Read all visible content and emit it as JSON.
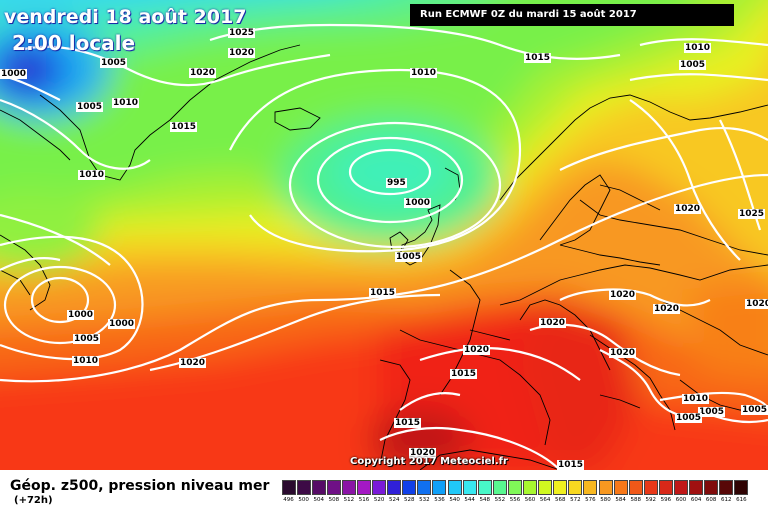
{
  "title": {
    "date": "vendredi 18 août 2017",
    "time": "2:00 locale"
  },
  "run_label": "Run ECMWF 0Z du mardi 15 août 2017",
  "copyright": "Copyright 2017 Meteociel.fr",
  "legend": {
    "title": "Géop. z500, pression niveau mer",
    "subtitle": "(+72h)",
    "scale": [
      {
        "v": "496",
        "c": "#2a0a2e"
      },
      {
        "v": "500",
        "c": "#3d0a46"
      },
      {
        "v": "504",
        "c": "#560c66"
      },
      {
        "v": "508",
        "c": "#6f1086"
      },
      {
        "v": "512",
        "c": "#8a14a6"
      },
      {
        "v": "516",
        "c": "#a418c4"
      },
      {
        "v": "520",
        "c": "#7a1ad8"
      },
      {
        "v": "524",
        "c": "#3020d8"
      },
      {
        "v": "528",
        "c": "#1040e8"
      },
      {
        "v": "532",
        "c": "#1070f0"
      },
      {
        "v": "536",
        "c": "#10a0f8"
      },
      {
        "v": "540",
        "c": "#20c8f8"
      },
      {
        "v": "544",
        "c": "#38e8f0"
      },
      {
        "v": "548",
        "c": "#48f8c8"
      },
      {
        "v": "552",
        "c": "#58f890"
      },
      {
        "v": "556",
        "c": "#80f858"
      },
      {
        "v": "560",
        "c": "#a8f830"
      },
      {
        "v": "564",
        "c": "#d0f820"
      },
      {
        "v": "568",
        "c": "#f0f020"
      },
      {
        "v": "572",
        "c": "#f8d820"
      },
      {
        "v": "576",
        "c": "#f8b820"
      },
      {
        "v": "580",
        "c": "#f89820"
      },
      {
        "v": "584",
        "c": "#f87818"
      },
      {
        "v": "588",
        "c": "#f05818"
      },
      {
        "v": "592",
        "c": "#e83818"
      },
      {
        "v": "596",
        "c": "#d82818"
      },
      {
        "v": "600",
        "c": "#c01818"
      },
      {
        "v": "604",
        "c": "#a01010"
      },
      {
        "v": "608",
        "c": "#800c0c"
      },
      {
        "v": "612",
        "c": "#580808"
      },
      {
        "v": "616",
        "c": "#300404"
      }
    ]
  },
  "isobars": [
    {
      "id": "i1",
      "text": "1025"
    },
    {
      "id": "i2",
      "text": "1020"
    },
    {
      "id": "i3",
      "text": "1005"
    },
    {
      "id": "i4",
      "text": "1020"
    },
    {
      "id": "i5",
      "text": "1000"
    },
    {
      "id": "i6",
      "text": "1005"
    },
    {
      "id": "i7",
      "text": "1010"
    },
    {
      "id": "i8",
      "text": "1015"
    },
    {
      "id": "i9",
      "text": "1010"
    },
    {
      "id": "i10",
      "text": "1010"
    },
    {
      "id": "i11",
      "text": "1015"
    },
    {
      "id": "i12",
      "text": "1010"
    },
    {
      "id": "i13",
      "text": "1005"
    },
    {
      "id": "i14",
      "text": "995"
    },
    {
      "id": "i15",
      "text": "1000"
    },
    {
      "id": "i16",
      "text": "1005"
    },
    {
      "id": "i17",
      "text": "1015"
    },
    {
      "id": "i18",
      "text": "1020"
    },
    {
      "id": "i19",
      "text": "1025"
    },
    {
      "id": "i20",
      "text": "1000"
    },
    {
      "id": "i21",
      "text": "1000"
    },
    {
      "id": "i22",
      "text": "1005"
    },
    {
      "id": "i23",
      "text": "1010"
    },
    {
      "id": "i24",
      "text": "1020"
    },
    {
      "id": "i25",
      "text": "1020"
    },
    {
      "id": "i26",
      "text": "1020"
    },
    {
      "id": "i27",
      "text": "1020"
    },
    {
      "id": "i28",
      "text": "1020"
    },
    {
      "id": "i29",
      "text": "1020"
    },
    {
      "id": "i30",
      "text": "1015"
    },
    {
      "id": "i31",
      "text": "1010"
    },
    {
      "id": "i32",
      "text": "1005"
    },
    {
      "id": "i33",
      "text": "1005"
    },
    {
      "id": "i34",
      "text": "1005"
    },
    {
      "id": "i35",
      "text": "1015"
    },
    {
      "id": "i36",
      "text": "1020"
    },
    {
      "id": "i37",
      "text": "1015"
    },
    {
      "id": "i38",
      "text": "1020"
    }
  ]
}
